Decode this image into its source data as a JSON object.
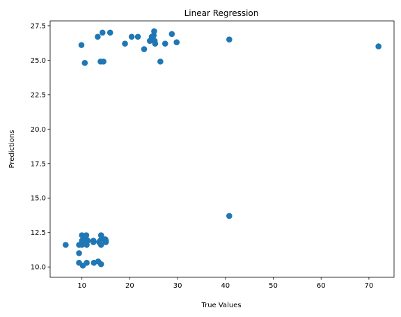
{
  "chart_data": {
    "type": "scatter",
    "title": "Linear Regression",
    "xlabel": "True Values",
    "ylabel": "Predictions",
    "xlim": [
      3.35,
      75.25
    ],
    "ylim": [
      9.25,
      27.85
    ],
    "xticks": [
      10,
      20,
      30,
      40,
      50,
      60,
      70
    ],
    "yticks": [
      10.0,
      12.5,
      15.0,
      17.5,
      20.0,
      22.5,
      25.0,
      27.5
    ],
    "grid": false,
    "point_color": "#1f77b4",
    "points": [
      [
        9.9,
        26.1
      ],
      [
        10.6,
        24.8
      ],
      [
        13.3,
        26.7
      ],
      [
        14.3,
        27.0
      ],
      [
        13.9,
        24.9
      ],
      [
        14.5,
        24.9
      ],
      [
        15.9,
        27.0
      ],
      [
        19.0,
        26.2
      ],
      [
        20.4,
        26.7
      ],
      [
        21.7,
        26.7
      ],
      [
        23.0,
        25.8
      ],
      [
        24.2,
        26.4
      ],
      [
        24.6,
        26.7
      ],
      [
        25.0,
        26.8
      ],
      [
        25.1,
        27.1
      ],
      [
        25.2,
        26.4
      ],
      [
        25.3,
        26.2
      ],
      [
        26.4,
        24.9
      ],
      [
        27.4,
        26.2
      ],
      [
        28.8,
        26.9
      ],
      [
        29.8,
        26.3
      ],
      [
        40.8,
        26.5
      ],
      [
        72.0,
        26.0
      ],
      [
        40.8,
        13.7
      ],
      [
        6.6,
        11.6
      ],
      [
        9.4,
        11.6
      ],
      [
        9.4,
        11.0
      ],
      [
        9.4,
        10.3
      ],
      [
        10.0,
        12.3
      ],
      [
        10.0,
        11.9
      ],
      [
        10.0,
        11.6
      ],
      [
        10.2,
        10.1
      ],
      [
        10.5,
        11.8
      ],
      [
        10.8,
        12.1
      ],
      [
        10.9,
        12.3
      ],
      [
        11.0,
        11.6
      ],
      [
        11.0,
        10.3
      ],
      [
        11.2,
        11.9
      ],
      [
        12.4,
        11.9
      ],
      [
        12.4,
        11.8
      ],
      [
        12.5,
        10.3
      ],
      [
        13.4,
        10.4
      ],
      [
        13.6,
        11.8
      ],
      [
        13.8,
        11.9
      ],
      [
        14.0,
        12.3
      ],
      [
        14.0,
        11.6
      ],
      [
        14.2,
        12.1
      ],
      [
        14.0,
        10.2
      ],
      [
        14.9,
        12.0
      ],
      [
        15.0,
        11.9
      ],
      [
        15.0,
        11.8
      ]
    ]
  }
}
